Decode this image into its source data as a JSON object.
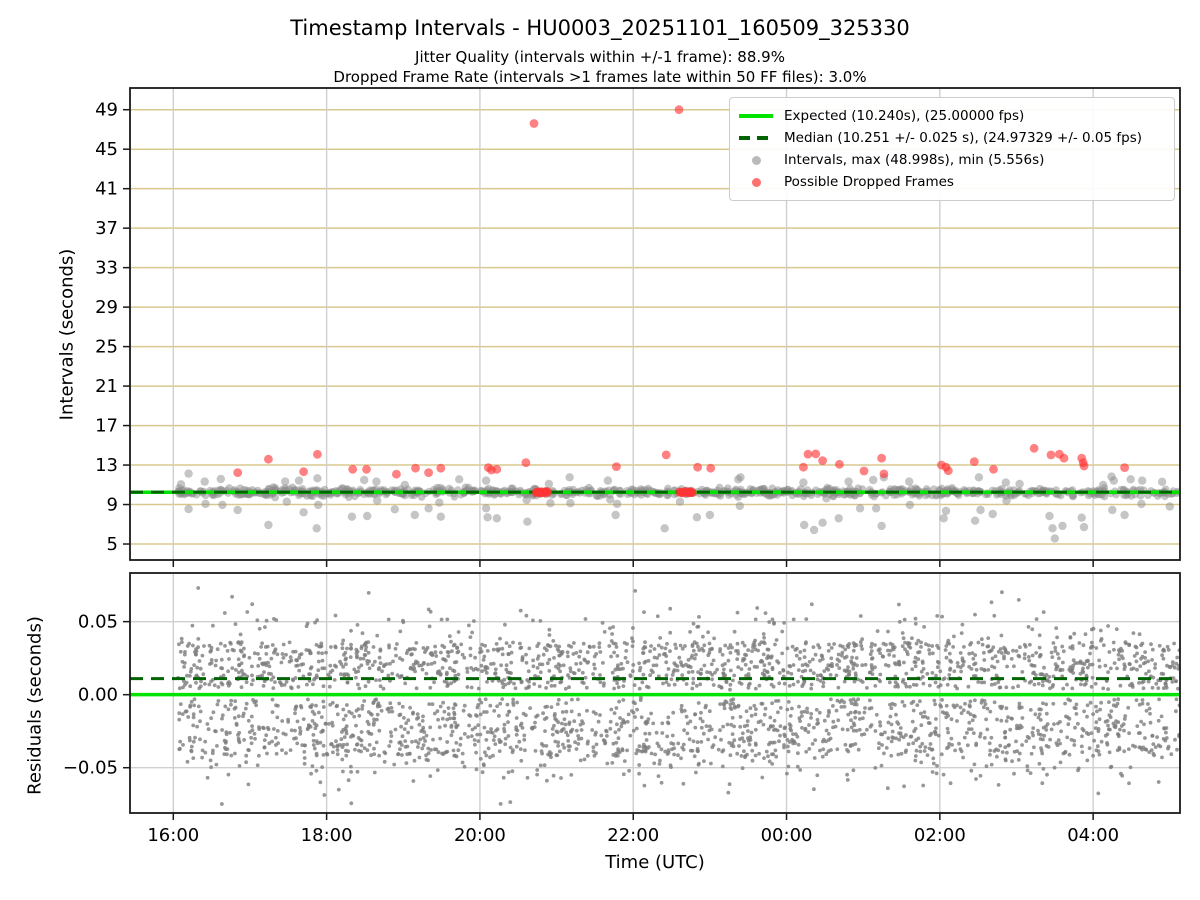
{
  "header": {
    "title": "Timestamp Intervals - HU0003_20251101_160509_325330",
    "subtitle1": "Jitter Quality (intervals within +/-1 frame): 88.9%",
    "subtitle2": "Dropped Frame Rate (intervals >1 frames late within 50 FF files): 3.0%"
  },
  "legend": {
    "items": [
      {
        "label": "Expected (10.240s), (25.00000 fps)",
        "marker": "solid-line"
      },
      {
        "label": "Median (10.251 +/- 0.025 s), (24.97329 +/- 0.05 fps)",
        "marker": "dashed-line"
      },
      {
        "label": "Intervals, max (48.998s), min (5.556s)",
        "marker": "gray-dot"
      },
      {
        "label": "Possible Dropped Frames",
        "marker": "red-dot"
      }
    ]
  },
  "colors": {
    "expected_line": "#00E400",
    "median_line": "#006400",
    "interval_dot": "#8c8c8c",
    "dropped_dot": "#ff3333",
    "grid_tan": "#d9c88d",
    "grid_gray": "#cfcfcf",
    "spine": "#1a1a1a"
  },
  "chart_data": {
    "type": "scatter",
    "title": "Timestamp Intervals - HU0003_20251101_160509_325330",
    "xlabel": "Time (UTC)",
    "x_axis": {
      "min_hour": 15.435,
      "max_hour": 29.133,
      "ticks": [
        {
          "h": 16,
          "label": "16:00"
        },
        {
          "h": 18,
          "label": "18:00"
        },
        {
          "h": 20,
          "label": "20:00"
        },
        {
          "h": 22,
          "label": "22:00"
        },
        {
          "h": 24,
          "label": "00:00"
        },
        {
          "h": 26,
          "label": "02:00"
        },
        {
          "h": 28,
          "label": "04:00"
        }
      ]
    },
    "top_plot": {
      "ylabel": "Intervals (seconds)",
      "ylim": [
        3.38,
        51.2
      ],
      "yticks": [
        5,
        9,
        13,
        17,
        21,
        25,
        29,
        33,
        37,
        41,
        45,
        49
      ],
      "expected_value": 10.24,
      "expected_fps": "25.00000",
      "median_value": 10.251,
      "median_tol": 0.025,
      "median_fps": "24.97329",
      "max_interval": 48.998,
      "min_interval": 5.556,
      "band": {
        "t_start": 16.06,
        "t_end": 29.11,
        "center": 10.25,
        "spread": 0.4,
        "count": 800,
        "seed": 7
      },
      "gray_points": [
        [
          16.1,
          11.05
        ],
        [
          16.2,
          12.13
        ],
        [
          16.2,
          8.55
        ],
        [
          16.41,
          11.32
        ],
        [
          16.42,
          9.06
        ],
        [
          16.62,
          11.59
        ],
        [
          16.64,
          8.96
        ],
        [
          16.84,
          8.45
        ],
        [
          17.24,
          6.93
        ],
        [
          17.46,
          11.32
        ],
        [
          17.48,
          9.29
        ],
        [
          17.64,
          11.42
        ],
        [
          17.7,
          8.21
        ],
        [
          17.88,
          11.66
        ],
        [
          17.89,
          8.96
        ],
        [
          17.87,
          6.59
        ],
        [
          18.33,
          7.77
        ],
        [
          18.49,
          11.49
        ],
        [
          18.53,
          7.84
        ],
        [
          18.65,
          11.32
        ],
        [
          18.66,
          9.39
        ],
        [
          18.89,
          8.52
        ],
        [
          19.02,
          10.98
        ],
        [
          19.15,
          7.94
        ],
        [
          19.33,
          8.62
        ],
        [
          19.47,
          9.19
        ],
        [
          19.49,
          7.77
        ],
        [
          19.73,
          11.56
        ],
        [
          20.08,
          11.42
        ],
        [
          20.08,
          8.62
        ],
        [
          20.1,
          7.71
        ],
        [
          20.22,
          7.6
        ],
        [
          20.61,
          9.46
        ],
        [
          20.62,
          7.26
        ],
        [
          20.9,
          11.08
        ],
        [
          20.92,
          9.13
        ],
        [
          21.17,
          11.76
        ],
        [
          21.18,
          9.13
        ],
        [
          21.67,
          11.42
        ],
        [
          21.7,
          9.52
        ],
        [
          21.77,
          7.94
        ],
        [
          21.79,
          9.06
        ],
        [
          22.41,
          6.59
        ],
        [
          22.61,
          9.29
        ],
        [
          22.83,
          7.71
        ],
        [
          23.0,
          7.94
        ],
        [
          23.37,
          11.56
        ],
        [
          23.39,
          8.86
        ],
        [
          23.4,
          11.76
        ],
        [
          24.22,
          11.22
        ],
        [
          24.23,
          6.93
        ],
        [
          24.36,
          6.42
        ],
        [
          24.47,
          7.16
        ],
        [
          24.52,
          9.63
        ],
        [
          24.68,
          7.6
        ],
        [
          24.81,
          11.32
        ],
        [
          24.96,
          8.62
        ],
        [
          25.13,
          11.49
        ],
        [
          25.17,
          8.62
        ],
        [
          25.24,
          6.83
        ],
        [
          25.27,
          11.76
        ],
        [
          25.6,
          11.32
        ],
        [
          25.61,
          8.96
        ],
        [
          26.05,
          7.6
        ],
        [
          26.08,
          8.35
        ],
        [
          26.46,
          7.36
        ],
        [
          26.51,
          11.76
        ],
        [
          26.53,
          8.45
        ],
        [
          26.69,
          8.04
        ],
        [
          26.86,
          11.22
        ],
        [
          26.87,
          9.39
        ],
        [
          27.04,
          11.08
        ],
        [
          27.43,
          7.84
        ],
        [
          27.47,
          6.59
        ],
        [
          27.5,
          5.556
        ],
        [
          27.6,
          6.83
        ],
        [
          27.85,
          7.67
        ],
        [
          27.88,
          6.71
        ],
        [
          28.13,
          10.98
        ],
        [
          28.24,
          11.83
        ],
        [
          28.25,
          8.45
        ],
        [
          28.27,
          11.42
        ],
        [
          28.41,
          7.94
        ],
        [
          28.49,
          11.56
        ],
        [
          28.63,
          9.06
        ],
        [
          28.64,
          11.42
        ],
        [
          28.9,
          11.3
        ],
        [
          29.0,
          8.8
        ]
      ],
      "red_points": [
        [
          16.84,
          12.23
        ],
        [
          17.24,
          13.59
        ],
        [
          17.7,
          12.33
        ],
        [
          17.88,
          14.09
        ],
        [
          18.34,
          12.57
        ],
        [
          18.52,
          12.57
        ],
        [
          18.91,
          12.07
        ],
        [
          19.16,
          12.68
        ],
        [
          19.33,
          12.23
        ],
        [
          19.49,
          12.68
        ],
        [
          20.11,
          12.74
        ],
        [
          20.15,
          12.5
        ],
        [
          20.22,
          12.57
        ],
        [
          20.6,
          13.24
        ],
        [
          21.78,
          12.84
        ],
        [
          22.43,
          14.03
        ],
        [
          22.84,
          12.78
        ],
        [
          23.01,
          12.68
        ],
        [
          24.22,
          12.78
        ],
        [
          24.28,
          14.1
        ],
        [
          24.38,
          14.13
        ],
        [
          24.47,
          13.45
        ],
        [
          24.69,
          13.08
        ],
        [
          25.01,
          12.4
        ],
        [
          25.24,
          13.69
        ],
        [
          25.27,
          12.1
        ],
        [
          26.02,
          13.0
        ],
        [
          26.08,
          12.78
        ],
        [
          26.11,
          12.43
        ],
        [
          26.45,
          13.35
        ],
        [
          26.7,
          12.57
        ],
        [
          27.23,
          14.7
        ],
        [
          27.45,
          14.03
        ],
        [
          27.56,
          14.1
        ],
        [
          27.62,
          13.69
        ],
        [
          27.85,
          13.69
        ],
        [
          27.87,
          13.24
        ],
        [
          27.88,
          12.9
        ],
        [
          28.41,
          12.74
        ]
      ],
      "red_high_outliers": [
        [
          20.705,
          47.6
        ],
        [
          22.597,
          48.998
        ]
      ],
      "red_clusters": [
        {
          "t_start": 20.69,
          "t_end": 20.9,
          "value": 10.25,
          "count": 14,
          "seed": 3
        },
        {
          "t_start": 22.58,
          "t_end": 22.79,
          "value": 10.25,
          "count": 14,
          "seed": 5
        }
      ]
    },
    "bottom_plot": {
      "ylabel": "Residuals (seconds)",
      "ylim": [
        -0.081,
        0.0833
      ],
      "yticks": [
        {
          "v": -0.05,
          "label": "−0.05"
        },
        {
          "v": 0.0,
          "label": "0.00"
        },
        {
          "v": 0.05,
          "label": "0.05"
        }
      ],
      "expected_residual": 0.0,
      "median_residual": 0.011,
      "cloud": {
        "count": 3000,
        "t_start": 16.06,
        "t_end": 29.13,
        "seed": 11,
        "bands": [
          {
            "type": "uniform",
            "min": 0.004,
            "max": 0.036,
            "weight": 0.44
          },
          {
            "type": "uniform",
            "min": -0.042,
            "max": -0.003,
            "weight": 0.4
          },
          {
            "type": "normal",
            "mean": 0.04,
            "sd": 0.01,
            "weight": 0.07
          },
          {
            "type": "normal",
            "mean": -0.045,
            "sd": 0.01,
            "weight": 0.07
          },
          {
            "type": "uniform",
            "min": -0.075,
            "max": 0.072,
            "weight": 0.02
          }
        ],
        "clamp": [
          -0.078,
          0.073
        ]
      }
    }
  }
}
